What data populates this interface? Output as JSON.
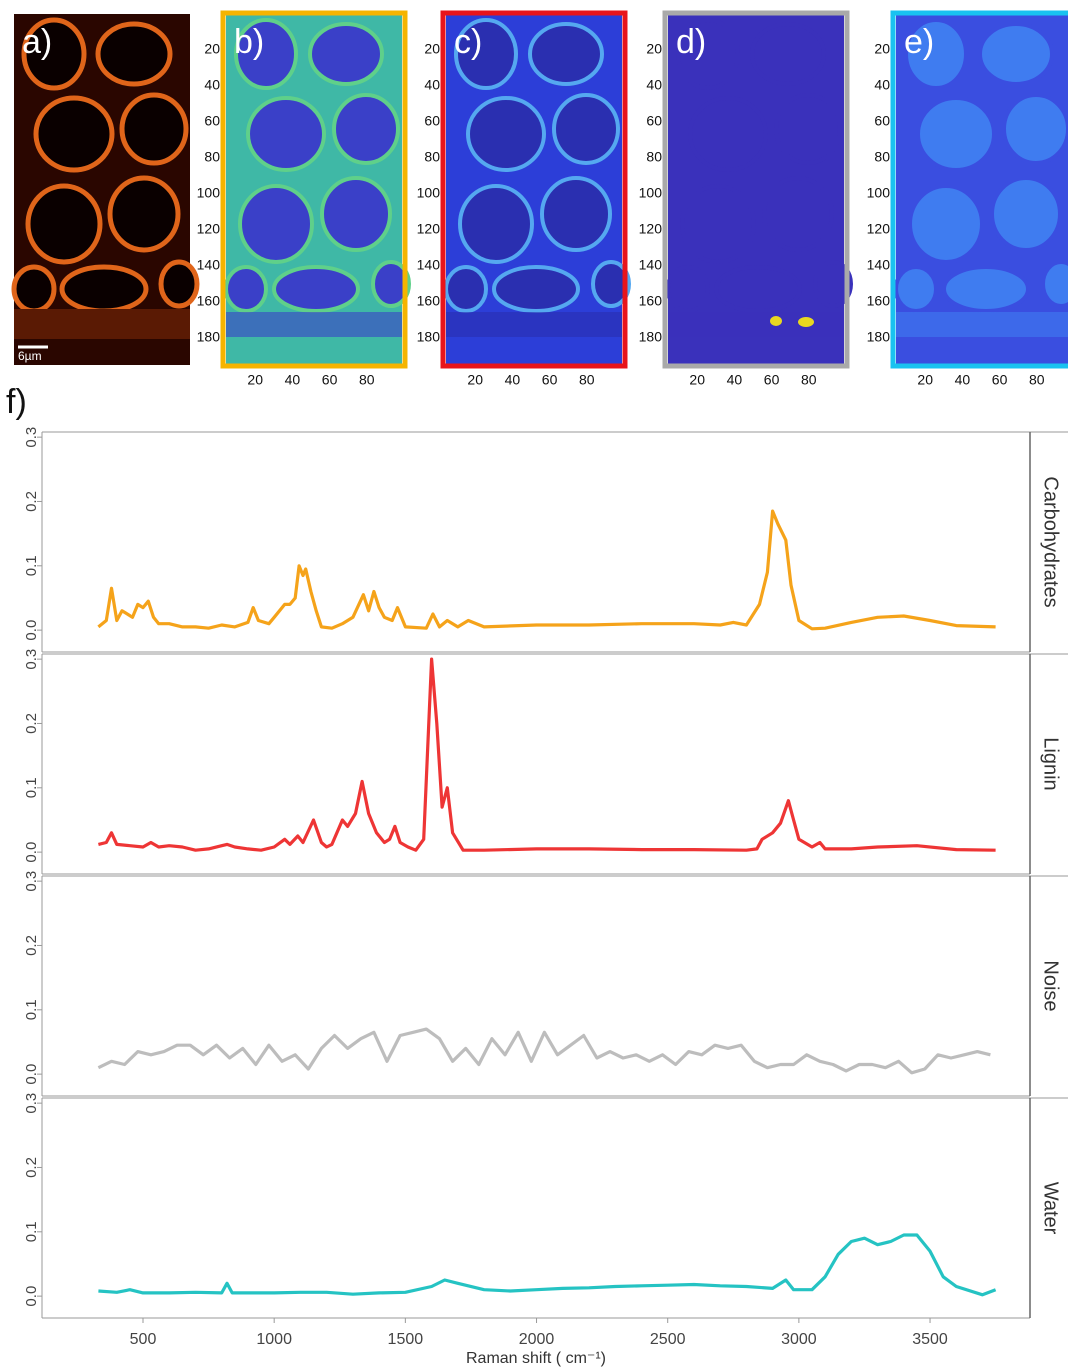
{
  "panels": [
    {
      "label": "a)",
      "scale_bar": "6µm"
    },
    {
      "label": "b)",
      "border_color": "#f5b400",
      "xlim": [
        0,
        100
      ],
      "ylim": [
        0,
        195
      ],
      "xticks": [
        20,
        40,
        60,
        80
      ],
      "yticks": [
        20,
        40,
        60,
        80,
        100,
        120,
        140,
        160,
        180
      ]
    },
    {
      "label": "c)",
      "border_color": "#e8141b",
      "xlim": [
        0,
        100
      ],
      "ylim": [
        0,
        195
      ],
      "xticks": [
        20,
        40,
        60,
        80
      ],
      "yticks": [
        20,
        40,
        60,
        80,
        100,
        120,
        140,
        160,
        180
      ]
    },
    {
      "label": "d)",
      "border_color": "#a9a9a9",
      "xlim": [
        0,
        100
      ],
      "ylim": [
        0,
        195
      ],
      "xticks": [
        20,
        40,
        60,
        80
      ],
      "yticks": [
        20,
        40,
        60,
        80,
        100,
        120,
        140,
        160,
        180
      ]
    },
    {
      "label": "e)",
      "border_color": "#19c2f0",
      "xlim": [
        0,
        100
      ],
      "ylim": [
        0,
        195
      ],
      "xticks": [
        20,
        40,
        60,
        80
      ],
      "yticks": [
        20,
        40,
        60,
        80,
        100,
        120,
        140,
        160,
        180
      ]
    }
  ],
  "figure_label": "f)",
  "chart_data": [
    {
      "type": "line",
      "xlim": [
        115,
        3881
      ],
      "ylim": [
        -0.034,
        0.308
      ],
      "yticks": [
        {
          "value": 0,
          "label": "0.0"
        },
        0.1,
        0.2,
        0.3
      ],
      "x": [
        330,
        360,
        380,
        400,
        420,
        440,
        460,
        480,
        500,
        520,
        540,
        560,
        600,
        650,
        700,
        750,
        800,
        850,
        900,
        920,
        940,
        980,
        1000,
        1040,
        1060,
        1080,
        1095,
        1110,
        1120,
        1140,
        1160,
        1180,
        1220,
        1260,
        1300,
        1340,
        1360,
        1380,
        1400,
        1420,
        1450,
        1470,
        1500,
        1580,
        1605,
        1630,
        1660,
        1700,
        1740,
        1800,
        2000,
        2200,
        2400,
        2600,
        2700,
        2750,
        2800,
        2850,
        2880,
        2900,
        2920,
        2950,
        2970,
        3000,
        3050,
        3100,
        3200,
        3300,
        3400,
        3500,
        3600,
        3750
      ],
      "series": [
        {
          "name": "Carbohydrates",
          "color": "#f5a31a",
          "values": [
            0.005,
            0.015,
            0.065,
            0.015,
            0.03,
            0.025,
            0.02,
            0.04,
            0.035,
            0.045,
            0.02,
            0.01,
            0.01,
            0.005,
            0.005,
            0.003,
            0.008,
            0.005,
            0.012,
            0.035,
            0.015,
            0.01,
            0.02,
            0.04,
            0.04,
            0.05,
            0.1,
            0.085,
            0.095,
            0.06,
            0.03,
            0.005,
            0.003,
            0.01,
            0.02,
            0.055,
            0.03,
            0.06,
            0.035,
            0.02,
            0.015,
            0.035,
            0.005,
            0.003,
            0.025,
            0.005,
            0.015,
            0.005,
            0.015,
            0.005,
            0.008,
            0.008,
            0.01,
            0.01,
            0.008,
            0.012,
            0.008,
            0.04,
            0.09,
            0.185,
            0.165,
            0.14,
            0.07,
            0.015,
            0.002,
            0.003,
            0.012,
            0.02,
            0.022,
            0.015,
            0.007,
            0.005
          ]
        }
      ]
    },
    {
      "type": "line",
      "xlim": [
        115,
        3881
      ],
      "ylim": [
        -0.034,
        0.308
      ],
      "yticks": [
        {
          "value": 0,
          "label": "0.0"
        },
        0.1,
        0.2,
        0.3
      ],
      "x": [
        330,
        360,
        380,
        400,
        450,
        500,
        530,
        560,
        600,
        650,
        700,
        750,
        800,
        820,
        850,
        900,
        950,
        1000,
        1040,
        1060,
        1090,
        1110,
        1150,
        1180,
        1200,
        1220,
        1260,
        1280,
        1310,
        1335,
        1360,
        1390,
        1420,
        1440,
        1460,
        1480,
        1510,
        1540,
        1570,
        1600,
        1620,
        1640,
        1660,
        1680,
        1720,
        1800,
        2000,
        2200,
        2400,
        2600,
        2800,
        2840,
        2860,
        2900,
        2930,
        2960,
        2980,
        3000,
        3050,
        3080,
        3100,
        3200,
        3300,
        3450,
        3600,
        3750
      ],
      "series": [
        {
          "name": "Lignin",
          "color": "#ee3535",
          "values": [
            0.012,
            0.015,
            0.03,
            0.012,
            0.01,
            0.008,
            0.015,
            0.008,
            0.01,
            0.008,
            0.003,
            0.005,
            0.01,
            0.012,
            0.008,
            0.005,
            0.003,
            0.008,
            0.02,
            0.012,
            0.025,
            0.015,
            0.05,
            0.015,
            0.008,
            0.012,
            0.05,
            0.04,
            0.06,
            0.11,
            0.06,
            0.03,
            0.015,
            0.02,
            0.04,
            0.015,
            0.008,
            0.003,
            0.02,
            0.3,
            0.2,
            0.07,
            0.1,
            0.03,
            0.003,
            0.003,
            0.005,
            0.005,
            0.004,
            0.004,
            0.003,
            0.005,
            0.02,
            0.03,
            0.045,
            0.08,
            0.05,
            0.02,
            0.008,
            0.015,
            0.005,
            0.005,
            0.008,
            0.01,
            0.004,
            0.003
          ]
        }
      ]
    },
    {
      "type": "line",
      "xlim": [
        115,
        3881
      ],
      "ylim": [
        -0.034,
        0.308
      ],
      "yticks": [
        {
          "value": 0,
          "label": "0.0"
        },
        0.1,
        0.2,
        0.3
      ],
      "x": [
        330,
        380,
        430,
        480,
        530,
        580,
        630,
        680,
        730,
        780,
        830,
        880,
        930,
        980,
        1030,
        1080,
        1130,
        1180,
        1230,
        1280,
        1330,
        1380,
        1430,
        1480,
        1530,
        1580,
        1630,
        1680,
        1730,
        1780,
        1830,
        1880,
        1930,
        1980,
        2030,
        2080,
        2130,
        2180,
        2230,
        2280,
        2330,
        2380,
        2430,
        2480,
        2530,
        2580,
        2630,
        2680,
        2730,
        2780,
        2830,
        2880,
        2930,
        2980,
        3030,
        3080,
        3130,
        3180,
        3230,
        3280,
        3330,
        3380,
        3430,
        3480,
        3530,
        3580,
        3630,
        3680,
        3730
      ],
      "series": [
        {
          "name": "Noise",
          "color": "#bdbdbd",
          "values": [
            0.01,
            0.02,
            0.015,
            0.035,
            0.03,
            0.035,
            0.045,
            0.045,
            0.03,
            0.045,
            0.025,
            0.04,
            0.015,
            0.045,
            0.02,
            0.03,
            0.008,
            0.04,
            0.06,
            0.04,
            0.055,
            0.065,
            0.02,
            0.06,
            0.065,
            0.07,
            0.055,
            0.02,
            0.04,
            0.015,
            0.055,
            0.03,
            0.065,
            0.02,
            0.065,
            0.03,
            0.045,
            0.06,
            0.025,
            0.035,
            0.025,
            0.03,
            0.02,
            0.03,
            0.015,
            0.035,
            0.03,
            0.045,
            0.04,
            0.045,
            0.02,
            0.01,
            0.015,
            0.015,
            0.03,
            0.02,
            0.015,
            0.005,
            0.015,
            0.015,
            0.01,
            0.02,
            0.002,
            0.008,
            0.03,
            0.025,
            0.03,
            0.035,
            0.03
          ]
        }
      ]
    },
    {
      "type": "line",
      "xlim": [
        115,
        3881
      ],
      "ylim": [
        -0.034,
        0.308
      ],
      "yticks": [
        {
          "value": 0,
          "label": "0.0"
        },
        0.1,
        0.2,
        0.3
      ],
      "xticks": [
        500,
        1000,
        1500,
        2000,
        2500,
        3000,
        3500
      ],
      "x_label": "Raman shift ( cm⁻¹)",
      "x": [
        330,
        400,
        450,
        500,
        600,
        700,
        800,
        820,
        840,
        900,
        1000,
        1100,
        1200,
        1300,
        1400,
        1500,
        1600,
        1650,
        1700,
        1800,
        1900,
        2000,
        2100,
        2200,
        2300,
        2400,
        2500,
        2600,
        2700,
        2800,
        2900,
        2950,
        2980,
        3050,
        3100,
        3150,
        3200,
        3250,
        3300,
        3350,
        3400,
        3450,
        3500,
        3550,
        3600,
        3700,
        3750
      ],
      "series": [
        {
          "name": "Water",
          "color": "#25c3c3",
          "values": [
            0.008,
            0.006,
            0.01,
            0.005,
            0.005,
            0.006,
            0.005,
            0.02,
            0.005,
            0.005,
            0.005,
            0.006,
            0.006,
            0.003,
            0.005,
            0.006,
            0.015,
            0.025,
            0.02,
            0.01,
            0.008,
            0.01,
            0.012,
            0.013,
            0.015,
            0.016,
            0.017,
            0.018,
            0.016,
            0.015,
            0.012,
            0.025,
            0.01,
            0.01,
            0.03,
            0.065,
            0.085,
            0.09,
            0.08,
            0.085,
            0.095,
            0.095,
            0.07,
            0.03,
            0.015,
            0.002,
            0.01
          ]
        }
      ]
    }
  ]
}
